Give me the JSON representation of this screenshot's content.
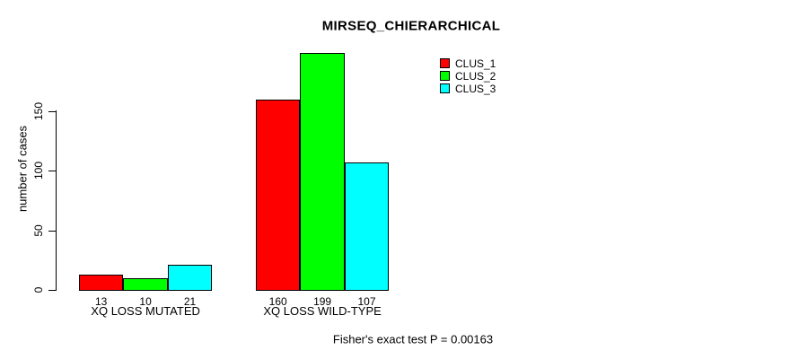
{
  "chart_data": {
    "type": "bar",
    "title": "MIRSEQ_CHIERARCHICAL",
    "categories": [
      "XQ LOSS MUTATED",
      "XQ LOSS WILD-TYPE"
    ],
    "series": [
      {
        "name": "CLUS_1",
        "color": "#FF0000",
        "values": [
          13,
          160
        ]
      },
      {
        "name": "CLUS_2",
        "color": "#00FF00",
        "values": [
          10,
          199
        ]
      },
      {
        "name": "CLUS_3",
        "color": "#00FFFF",
        "values": [
          21,
          107
        ]
      }
    ],
    "ylabel": "number of cases",
    "xlabel": "",
    "ylim": [
      0,
      199
    ],
    "yticks": [
      0,
      50,
      100,
      150
    ],
    "bar_value_labels_shown": true,
    "grid": false,
    "legend_position": "top-right",
    "annotation": "Fisher's exact test P = 0.00163"
  }
}
